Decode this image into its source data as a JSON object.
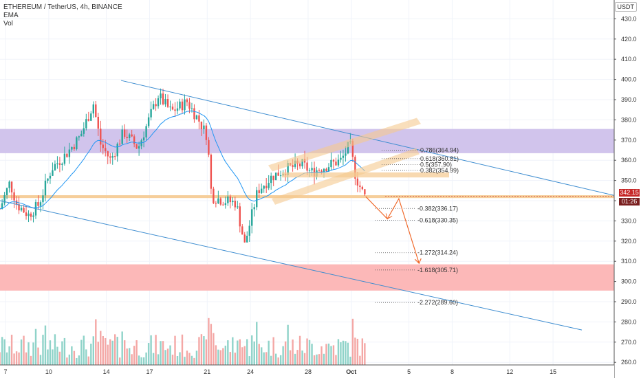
{
  "header": {
    "symbol_line": "ETHEREUM / TetherUS, 4h, BINANCE",
    "indicator_1": "EMA",
    "indicator_2": "Vol"
  },
  "price_axis": {
    "unit_label": "USDT",
    "current_price": "342.15",
    "countdown": "01:26"
  },
  "colors": {
    "up": "#26a69a",
    "down": "#ef5350",
    "vol_up": "#8fd3c9",
    "vol_down": "#f4a7a5",
    "ema": "#2196f3",
    "trendline": "#3e8dd0",
    "resistance_zone": "#d1c4ec",
    "support_zone": "#fcb8b8",
    "orange": "#f5c98f",
    "arrow": "#f06a2c",
    "price_tag": "#c62828",
    "countdown_tag": "#7a1f1f"
  },
  "chart_data": {
    "type": "candlestick",
    "symbol": "ETHEREUM / TetherUS",
    "interval": "4h",
    "exchange": "BINANCE",
    "y_ticks": [
      260,
      270,
      280,
      290,
      300,
      310,
      320,
      330,
      340,
      350,
      360,
      370,
      380,
      390,
      400,
      410,
      420,
      430
    ],
    "ylim": [
      258,
      432
    ],
    "x_ticks": [
      "7",
      "10",
      "14",
      "17",
      "21",
      "24",
      "28",
      "Oct",
      "5",
      "8",
      "12",
      "15"
    ],
    "current_price": 342.15,
    "zones": [
      {
        "name": "resistance",
        "from": 363.5,
        "to": 375.5
      },
      {
        "name": "support",
        "from": 295.5,
        "to": 308.5
      },
      {
        "name": "horizontal",
        "from": 341.3,
        "to": 342.7
      }
    ],
    "fib_levels": [
      {
        "label": "0.786(364.94)",
        "value": 364.94
      },
      {
        "label": "0.618(360.81)",
        "value": 360.81
      },
      {
        "label": "0.5(357.90)",
        "value": 357.9
      },
      {
        "label": "0.382(354.99)",
        "value": 354.99
      },
      {
        "label": "-0.382(336.17)",
        "value": 336.17
      },
      {
        "label": "-0.618(330.35)",
        "value": 330.35
      },
      {
        "label": "-1.272(314.24)",
        "value": 314.24
      },
      {
        "label": "-1.618(305.71)",
        "value": 305.71
      },
      {
        "label": "-2.272(289.60)",
        "value": 289.6
      }
    ],
    "key_points": [
      {
        "x": "13",
        "y": 390
      },
      {
        "x": "17",
        "y": 394
      },
      {
        "x": "21",
        "y": 336
      },
      {
        "x": "23.5",
        "y": 313
      },
      {
        "x": "28",
        "y": 369
      },
      {
        "x": "Oct 1",
        "y": 370
      },
      {
        "x": "Oct 2",
        "y": 342.15
      }
    ],
    "projection": [
      {
        "x": "Oct 2",
        "y": 342
      },
      {
        "x": "Oct 3.5",
        "y": 331
      },
      {
        "x": "Oct 4.3",
        "y": 341
      },
      {
        "x": "Oct 5.7",
        "y": 309
      }
    ]
  }
}
